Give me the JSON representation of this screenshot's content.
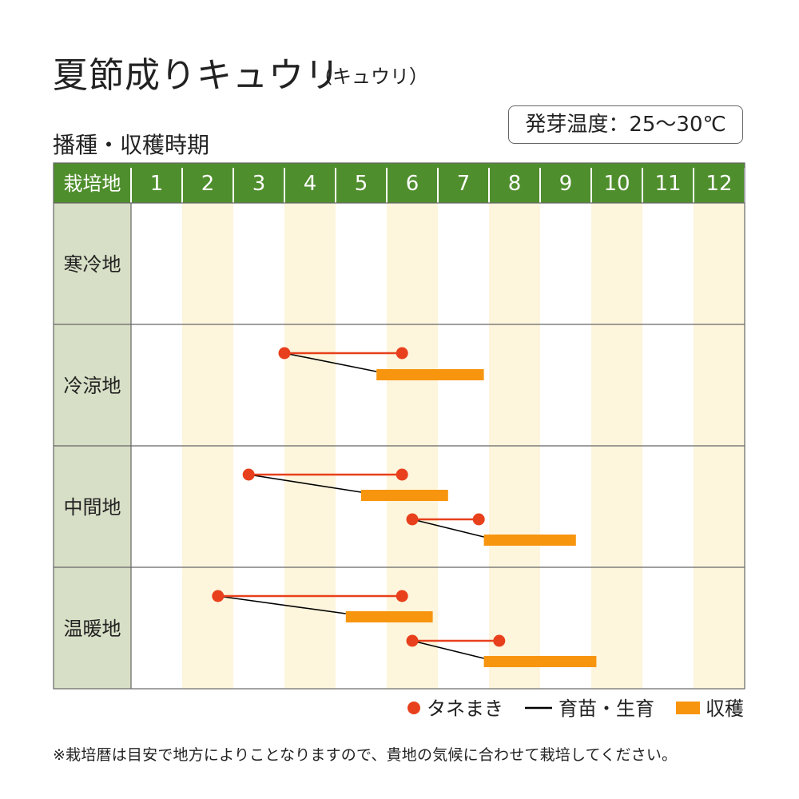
{
  "title": "夏節成りキュウリ",
  "subtitle": "（キュウリ）",
  "section_heading": "播種・収穫時期",
  "germination_temp": "発芽温度：25～30℃",
  "note": "※栽培暦は目安で地方によりことなりますので、貴地の気候に合わせて栽培してください。",
  "chart_data": {
    "type": "gantt",
    "header_label": "栽培地",
    "months": [
      "1",
      "2",
      "3",
      "4",
      "5",
      "6",
      "7",
      "8",
      "9",
      "10",
      "11",
      "12"
    ],
    "regions": [
      "寒冷地",
      "冷涼地",
      "中間地",
      "温暖地"
    ],
    "legend": [
      {
        "key": "sowing",
        "label": "タネまき",
        "color": "#e8401c"
      },
      {
        "key": "seedling",
        "label": "育苗・生育",
        "color": "#000000"
      },
      {
        "key": "harvest",
        "label": "収穫",
        "color": "#f7950f"
      }
    ],
    "colors": {
      "header": "#4f8e2d",
      "label_column": "#d7dfc6",
      "stripe": "#fdf5dc",
      "grid": "#666666"
    },
    "schedules": [
      {
        "region": "冷涼地",
        "sow_start": 4.0,
        "sow_end": 6.3,
        "harvest_start": 5.8,
        "harvest_end": 7.9
      },
      {
        "region": "中間地",
        "sow_start": 3.3,
        "sow_end": 6.3,
        "harvest_start": 5.5,
        "harvest_end": 7.2
      },
      {
        "region": "中間地",
        "sow_start": 6.5,
        "sow_end": 7.8,
        "harvest_start": 7.9,
        "harvest_end": 9.7
      },
      {
        "region": "温暖地",
        "sow_start": 2.7,
        "sow_end": 6.3,
        "harvest_start": 5.2,
        "harvest_end": 6.9
      },
      {
        "region": "温暖地",
        "sow_start": 6.5,
        "sow_end": 8.2,
        "harvest_start": 7.9,
        "harvest_end": 10.1
      }
    ]
  }
}
